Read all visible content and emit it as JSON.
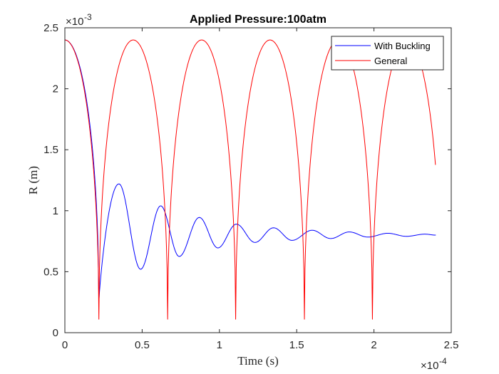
{
  "chart_data": {
    "type": "line",
    "title": "Applied Pressure:100atm",
    "xlabel": "Time (s)",
    "ylabel": "R (m)",
    "x_multiplier": "×10",
    "x_exponent": "-4",
    "y_multiplier": "×10",
    "y_exponent": "-3",
    "xlim": [
      0,
      2.5
    ],
    "ylim": [
      0,
      2.5
    ],
    "xticks": [
      0,
      0.5,
      1,
      1.5,
      2,
      2.5
    ],
    "xtick_labels": [
      "0",
      "0.5",
      "1",
      "1.5",
      "2",
      "2.5"
    ],
    "yticks": [
      0,
      0.5,
      1,
      1.5,
      2,
      2.5
    ],
    "ytick_labels": [
      "0",
      "0.5",
      "1",
      "1.5",
      "2",
      "2.5"
    ],
    "grid": false,
    "legend_position": "top-right",
    "series": [
      {
        "name": "With Buckling",
        "color": "#0000ff",
        "model": "damped-oscillation",
        "start": [
          0,
          2.4
        ],
        "first_minimum": [
          0.22,
          0.25
        ],
        "peaks": [
          [
            0.35,
            1.22
          ],
          [
            0.62,
            1.04
          ],
          [
            0.87,
            0.945
          ],
          [
            1.11,
            0.89
          ],
          [
            1.35,
            0.86
          ],
          [
            1.6,
            0.84
          ],
          [
            1.84,
            0.826
          ],
          [
            2.09,
            0.815
          ],
          [
            2.33,
            0.808
          ]
        ],
        "troughs": [
          [
            0.49,
            0.52
          ],
          [
            0.74,
            0.625
          ],
          [
            0.99,
            0.695
          ],
          [
            1.23,
            0.74
          ],
          [
            1.47,
            0.757
          ],
          [
            1.72,
            0.772
          ],
          [
            1.96,
            0.784
          ],
          [
            2.21,
            0.79
          ]
        ],
        "end": [
          2.4,
          0.8
        ]
      },
      {
        "name": "General",
        "color": "#ff0000",
        "model": "periodic-collapse",
        "maximum": 2.4,
        "minimum": 0.11,
        "minima_x": [
          0.22,
          0.665,
          1.105,
          1.55,
          1.99
        ],
        "end": [
          2.4,
          1.33
        ]
      }
    ]
  }
}
